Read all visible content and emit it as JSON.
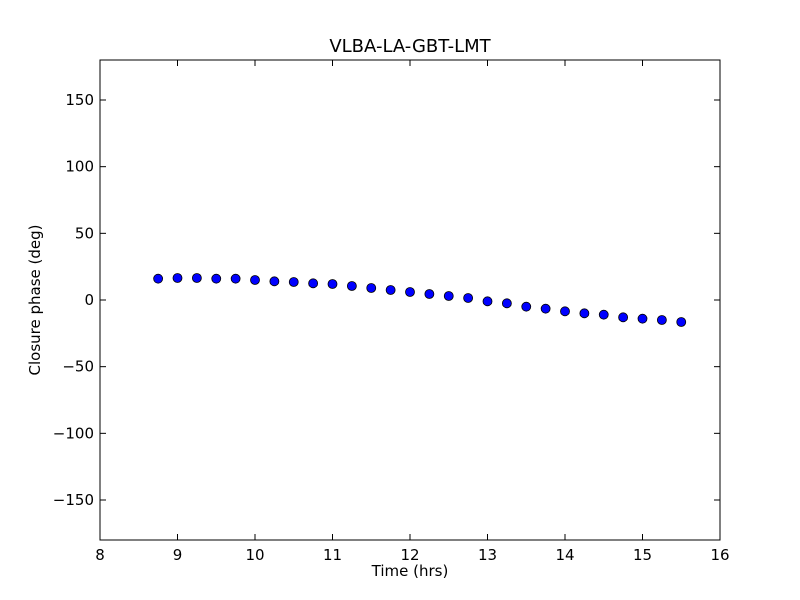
{
  "chart_data": {
    "type": "scatter",
    "title": "VLBA-LA-GBT-LMT",
    "xlabel": "Time (hrs)",
    "ylabel": "Closure phase (deg)",
    "xlim": [
      8,
      16
    ],
    "ylim": [
      -180,
      180
    ],
    "x_ticks": [
      8,
      9,
      10,
      11,
      12,
      13,
      14,
      15,
      16
    ],
    "x_tick_labels": [
      "8",
      "9",
      "10",
      "11",
      "12",
      "13",
      "14",
      "15",
      "16"
    ],
    "y_ticks": [
      150,
      100,
      50,
      0,
      -50,
      -100,
      -150
    ],
    "y_tick_labels": [
      "150",
      "100",
      "50",
      "0",
      "−50",
      "−100",
      "−150"
    ],
    "grid": false,
    "marker_color": "#0000ff",
    "series": [
      {
        "x": [
          8.75,
          9.0,
          9.25,
          9.5,
          9.75,
          10.0,
          10.25,
          10.5,
          10.75,
          11.0,
          11.25,
          11.5,
          11.75,
          12.0,
          12.25,
          12.5,
          12.75,
          13.0,
          13.25,
          13.5,
          13.75,
          14.0,
          14.25,
          14.5,
          14.75,
          15.0,
          15.25,
          15.5
        ],
        "y": [
          16,
          16.5,
          16.5,
          16,
          16,
          15,
          14,
          13.5,
          12.5,
          12,
          10.5,
          9,
          7.5,
          6,
          4.5,
          3,
          1.5,
          -1,
          -2.5,
          -5,
          -6.5,
          -8.5,
          -10,
          -11,
          -13,
          -14,
          -15,
          -16.5
        ]
      }
    ]
  }
}
